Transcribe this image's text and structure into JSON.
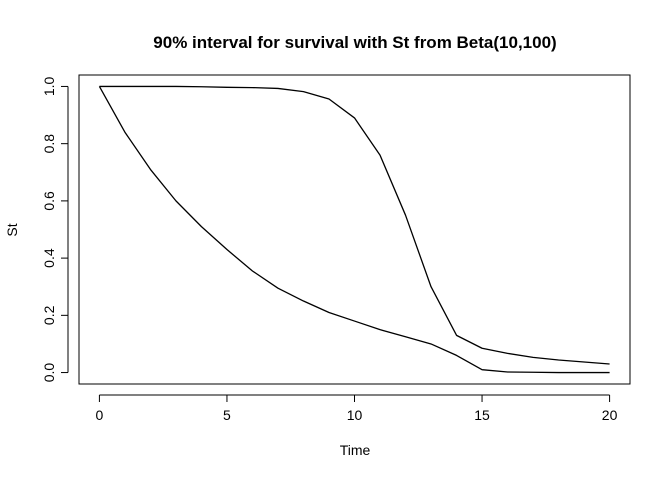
{
  "chart_data": {
    "type": "line",
    "title": "90% interval for survival with St from Beta(10,100)",
    "xlabel": "Time",
    "ylabel": "St",
    "xlim": [
      -0.8,
      20.8
    ],
    "ylim": [
      -0.04,
      1.04
    ],
    "x_ticks": [
      0,
      5,
      10,
      15,
      20
    ],
    "y_ticks": [
      0.0,
      0.2,
      0.4,
      0.6,
      0.8,
      1.0
    ],
    "x_tick_labels": [
      "0",
      "5",
      "10",
      "15",
      "20"
    ],
    "y_tick_labels": [
      "0.0",
      "0.2",
      "0.4",
      "0.6",
      "0.8",
      "1.0"
    ],
    "grid": false,
    "legend": "none",
    "line_color": "#000000",
    "series": [
      {
        "x": [
          0,
          1,
          2,
          3,
          4,
          5,
          6,
          7,
          8,
          9,
          10,
          11,
          12,
          13,
          14,
          15,
          16,
          17,
          18,
          19,
          20
        ],
        "values": [
          1.0,
          1.0,
          1.0,
          1.0,
          0.999,
          0.997,
          0.996,
          0.993,
          0.982,
          0.956,
          0.89,
          0.76,
          0.55,
          0.3,
          0.13,
          0.085,
          0.067,
          0.053,
          0.044,
          0.037,
          0.03
        ]
      },
      {
        "x": [
          0,
          1,
          2,
          3,
          4,
          5,
          6,
          7,
          8,
          9,
          10,
          11,
          12,
          13,
          14,
          15,
          16,
          17,
          18,
          19,
          20
        ],
        "values": [
          1.0,
          0.84,
          0.71,
          0.6,
          0.51,
          0.43,
          0.355,
          0.295,
          0.25,
          0.21,
          0.18,
          0.15,
          0.125,
          0.1,
          0.06,
          0.01,
          0.002,
          0.001,
          0.0,
          0.0,
          0.0
        ]
      }
    ]
  }
}
